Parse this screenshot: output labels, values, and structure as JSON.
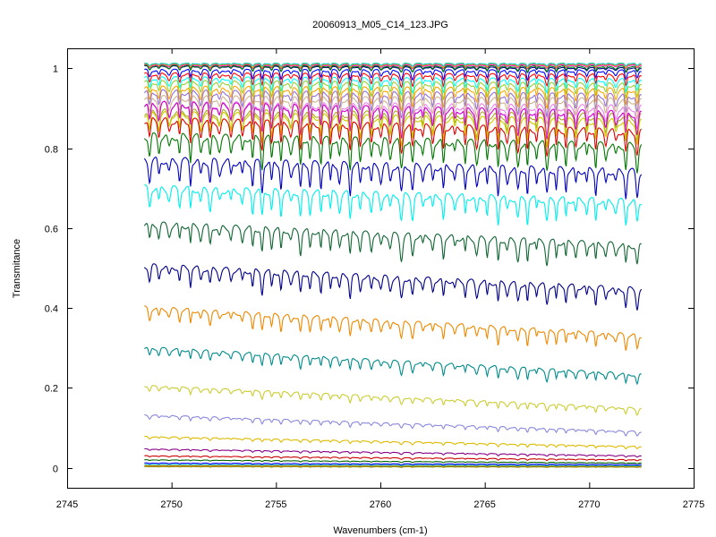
{
  "chart_data": {
    "type": "line",
    "title": "20060913_M05_C14_123.JPG",
    "xlabel": "Wavenumbers (cm-1)",
    "ylabel": "Transmitance",
    "xlim": [
      2745,
      2775
    ],
    "ylim": [
      -0.05,
      1.05
    ],
    "x_ticks": [
      2745,
      2750,
      2755,
      2760,
      2765,
      2770,
      2775
    ],
    "y_ticks": [
      0,
      0.2,
      0.4,
      0.6,
      0.8,
      1
    ],
    "x_range": [
      2748.7,
      2772.5
    ],
    "grid": false,
    "legend": "none",
    "series": [
      {
        "color": "#00008b",
        "start": 1.005,
        "end": 1.0,
        "depth": 0.01
      },
      {
        "color": "#ff00ff",
        "start": 1.008,
        "end": 1.008,
        "depth": 0.008
      },
      {
        "color": "#ff8c00",
        "start": 1.01,
        "end": 1.01,
        "depth": 0.008
      },
      {
        "color": "#00ced1",
        "start": 1.012,
        "end": 1.012,
        "depth": 0.006
      },
      {
        "color": "#008000",
        "start": 1.006,
        "end": 1.004,
        "depth": 0.012
      },
      {
        "color": "#0000ff",
        "start": 0.995,
        "end": 0.993,
        "depth": 0.02
      },
      {
        "color": "#ff0000",
        "start": 0.985,
        "end": 0.982,
        "depth": 0.025
      },
      {
        "color": "#00ffff",
        "start": 0.975,
        "end": 0.97,
        "depth": 0.03
      },
      {
        "color": "#9acd32",
        "start": 0.965,
        "end": 0.958,
        "depth": 0.035
      },
      {
        "color": "#ffa500",
        "start": 0.95,
        "end": 0.945,
        "depth": 0.04
      },
      {
        "color": "#9370db",
        "start": 0.94,
        "end": 0.93,
        "depth": 0.045
      },
      {
        "color": "#d2b48c",
        "start": 0.925,
        "end": 0.918,
        "depth": 0.05
      },
      {
        "color": "#ee82ee",
        "start": 0.91,
        "end": 0.9,
        "depth": 0.055
      },
      {
        "color": "#aaaa22",
        "start": 0.89,
        "end": 0.878,
        "depth": 0.06
      },
      {
        "color": "#cc00cc",
        "start": 0.91,
        "end": 0.885,
        "depth": 0.055
      },
      {
        "color": "#cccc00",
        "start": 0.885,
        "end": 0.865,
        "depth": 0.055
      },
      {
        "color": "#dd0000",
        "start": 0.87,
        "end": 0.84,
        "depth": 0.055
      },
      {
        "color": "#007700",
        "start": 0.83,
        "end": 0.805,
        "depth": 0.06
      },
      {
        "color": "#0000bb",
        "start": 0.77,
        "end": 0.74,
        "depth": 0.06
      },
      {
        "color": "#00eeee",
        "start": 0.7,
        "end": 0.665,
        "depth": 0.055
      },
      {
        "color": "#116633",
        "start": 0.61,
        "end": 0.555,
        "depth": 0.05
      },
      {
        "color": "#000088",
        "start": 0.505,
        "end": 0.445,
        "depth": 0.045
      },
      {
        "color": "#ee8800",
        "start": 0.4,
        "end": 0.33,
        "depth": 0.035
      },
      {
        "color": "#008b8b",
        "start": 0.3,
        "end": 0.232,
        "depth": 0.025
      },
      {
        "color": "#cccc33",
        "start": 0.205,
        "end": 0.148,
        "depth": 0.015
      },
      {
        "color": "#8888dd",
        "start": 0.132,
        "end": 0.09,
        "depth": 0.01
      },
      {
        "color": "#ddbb00",
        "start": 0.078,
        "end": 0.053,
        "depth": 0.006
      },
      {
        "color": "#880088",
        "start": 0.047,
        "end": 0.03,
        "depth": 0.004
      },
      {
        "color": "#cc0000",
        "start": 0.03,
        "end": 0.02,
        "depth": 0.003
      },
      {
        "color": "#006600",
        "start": 0.02,
        "end": 0.012,
        "depth": 0.002
      },
      {
        "color": "#0000ff",
        "start": 0.012,
        "end": 0.008,
        "depth": 0.002
      },
      {
        "color": "#00aaaa",
        "start": 0.008,
        "end": 0.005,
        "depth": 0.001
      },
      {
        "color": "#ff8800",
        "start": 0.005,
        "end": 0.003,
        "depth": 0.001
      },
      {
        "color": "#888800",
        "start": 0.003,
        "end": 0.002,
        "depth": 0.001
      }
    ]
  }
}
